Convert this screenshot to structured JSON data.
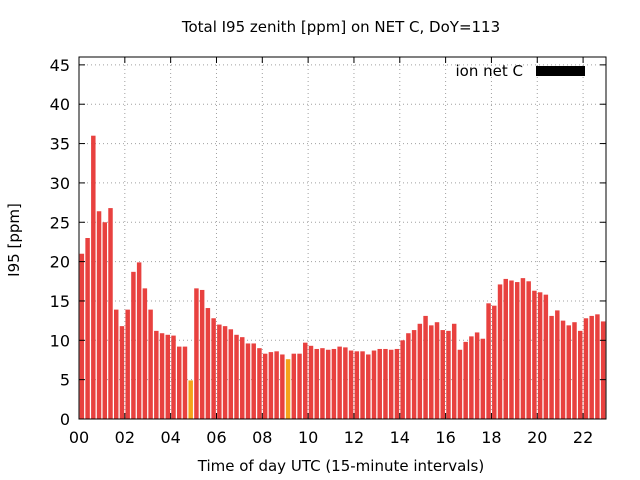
{
  "chart_data": {
    "type": "bar",
    "title": "Total I95 zenith [ppm] on NET C, DoY=113",
    "xlabel": "Time of day UTC (15-minute intervals)",
    "ylabel": "I95 [ppm]",
    "ylim": [
      0,
      46
    ],
    "yticks": [
      0,
      5,
      10,
      15,
      20,
      25,
      30,
      35,
      40,
      45
    ],
    "xlim": [
      0,
      92
    ],
    "xticks": [
      {
        "pos": 0,
        "label": "00"
      },
      {
        "pos": 8,
        "label": "02"
      },
      {
        "pos": 16,
        "label": "04"
      },
      {
        "pos": 24,
        "label": "06"
      },
      {
        "pos": 32,
        "label": "08"
      },
      {
        "pos": 40,
        "label": "10"
      },
      {
        "pos": 48,
        "label": "12"
      },
      {
        "pos": 56,
        "label": "14"
      },
      {
        "pos": 64,
        "label": "16"
      },
      {
        "pos": 72,
        "label": "18"
      },
      {
        "pos": 80,
        "label": "20"
      },
      {
        "pos": 88,
        "label": "22"
      }
    ],
    "grid": true,
    "legend": {
      "label": "ion net C",
      "placement": "top-right",
      "color": "#000000"
    },
    "colors": {
      "normal": "#e8413f",
      "flagged": "#f5a31b"
    },
    "values": [
      21.0,
      23.0,
      36.0,
      26.4,
      25.0,
      26.8,
      13.9,
      11.8,
      13.9,
      18.7,
      19.9,
      16.6,
      13.9,
      11.2,
      10.9,
      10.7,
      10.6,
      9.2,
      9.2,
      4.9,
      16.6,
      16.4,
      14.1,
      12.8,
      12.0,
      11.8,
      11.4,
      10.7,
      10.4,
      9.6,
      9.6,
      9.0,
      8.3,
      8.5,
      8.6,
      8.2,
      7.6,
      8.3,
      8.3,
      9.7,
      9.3,
      8.9,
      9.0,
      8.8,
      8.9,
      9.2,
      9.1,
      8.7,
      8.6,
      8.6,
      8.2,
      8.7,
      8.9,
      8.9,
      8.8,
      8.9,
      10.0,
      10.9,
      11.3,
      12.1,
      13.1,
      11.9,
      12.3,
      11.3,
      11.2,
      12.1,
      8.8,
      9.8,
      10.5,
      11.0,
      10.2,
      14.7,
      14.4,
      17.1,
      17.8,
      17.6,
      17.4,
      17.9,
      17.5,
      16.3,
      16.1,
      15.8,
      13.1,
      13.8,
      12.5,
      11.9,
      12.3,
      11.2,
      12.8,
      13.1,
      13.3,
      12.4
    ],
    "flagged": [
      19,
      36
    ]
  }
}
